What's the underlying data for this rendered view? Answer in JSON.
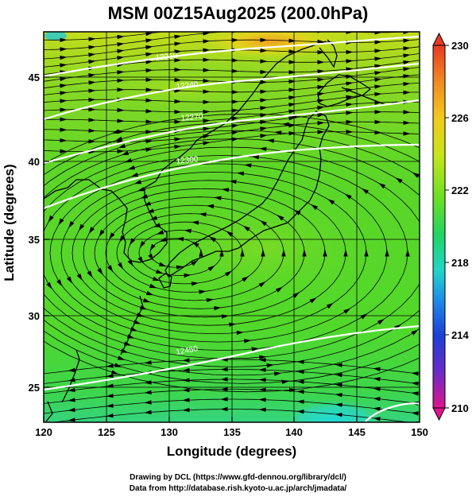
{
  "title": "MSM 00Z15Aug2025 (200.0hPa)",
  "x_axis": {
    "label": "Longitude (degrees)",
    "range": [
      120,
      150
    ],
    "ticks": [
      "120",
      "125",
      "130",
      "135",
      "140",
      "145",
      "150"
    ]
  },
  "y_axis": {
    "label": "Latitude  (degrees)",
    "range": [
      22.7,
      47.9
    ],
    "ticks": [
      "25",
      "30",
      "35",
      "40",
      "45"
    ]
  },
  "colorbar": {
    "ticks": [
      "230",
      "226",
      "222",
      "218",
      "214",
      "210"
    ],
    "range": [
      210,
      230
    ],
    "colors": [
      "#e0148c",
      "#6a2bc8",
      "#1c3fd6",
      "#1e8ee8",
      "#22d6c8",
      "#22d460",
      "#3ad838",
      "#8ee420",
      "#d6e41a",
      "#f2c81e",
      "#f08a20",
      "#e83a24"
    ]
  },
  "contour_labels": [
    "12210",
    "12240",
    "12270",
    "12300",
    "12450"
  ],
  "credits": {
    "line1": "Drawing by DCL (https://www.gfd-dennou.org/library/dcl/)",
    "line2": "Data from http://database.rish.kyoto-u.ac.jp/arch/jmadata/"
  },
  "colors": {
    "field_green": "#54d626",
    "field_yellow": "#c8e01c",
    "field_cyan": "#34d8c0",
    "contour_white": "#ffffff"
  }
}
